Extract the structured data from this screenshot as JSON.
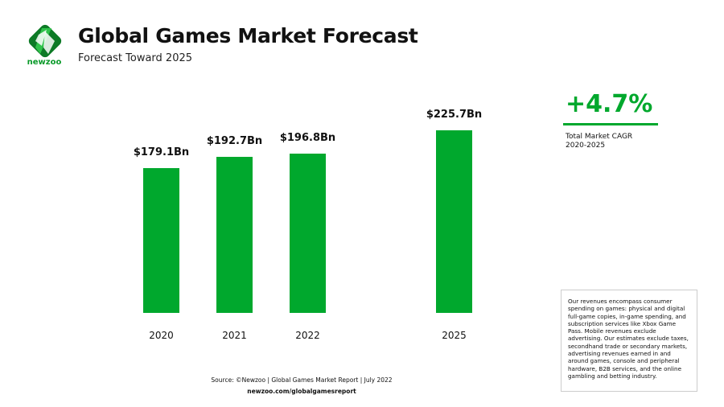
{
  "brand": {
    "name": "newzoo",
    "color": "#00a82d"
  },
  "header": {
    "title": "Global Games Market Forecast",
    "subtitle": "Forecast Toward 2025"
  },
  "chart_data": {
    "type": "bar",
    "categories": [
      "2020",
      "2021",
      "2022",
      "2025"
    ],
    "values": [
      179.1,
      192.7,
      196.8,
      225.7
    ],
    "data_labels": [
      "$179.1Bn",
      "$192.7Bn",
      "$196.8Bn",
      "$225.7Bn"
    ],
    "unit": "$Bn",
    "bar_color": "#00a82d",
    "grid": false
  },
  "cagr": {
    "value": "+4.7%",
    "label": "Total Market CAGR",
    "period": "2020-2025"
  },
  "note": "Our revenues encompass consumer spending on games: physical and digital full-game copies, in-game spending, and subscription services like Xbox Game Pass. Mobile revenues exclude advertising. Our estimates exclude taxes, secondhand trade or secondary markets, advertising revenues earned in and around games, console and peripheral hardware, B2B services, and the online gambling and betting industry.",
  "footer": {
    "source": "Source: ©Newzoo | Global Games Market Report | July 2022",
    "url": "newzoo.com/globalgamesreport"
  }
}
